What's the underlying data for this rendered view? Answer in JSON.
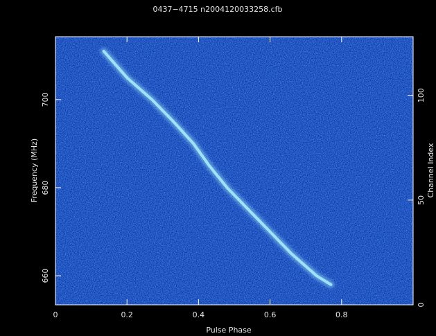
{
  "chart_data": {
    "type": "heatmap",
    "title": "0437−4715   n2004120033258.cfb",
    "x_label": "Pulse Phase",
    "y_label": "Frequency (MHz)",
    "y2_label": "Channel Index",
    "xlim": [
      0,
      1
    ],
    "xticks": [
      0,
      0.2,
      0.4,
      0.6,
      0.8
    ],
    "ylim": [
      653.4,
      714.3
    ],
    "yticks": [
      660,
      680,
      700
    ],
    "y2lim": [
      0,
      128
    ],
    "y2ticks": [
      0,
      50,
      100
    ],
    "x": [
      0.135,
      0.2,
      0.27,
      0.33,
      0.386,
      0.43,
      0.48,
      0.54,
      0.6,
      0.66,
      0.73,
      0.77
    ],
    "values": [
      711,
      705,
      700,
      695,
      690,
      685,
      680,
      675,
      670,
      665,
      660,
      658
    ],
    "color": "#a8f0ff"
  }
}
